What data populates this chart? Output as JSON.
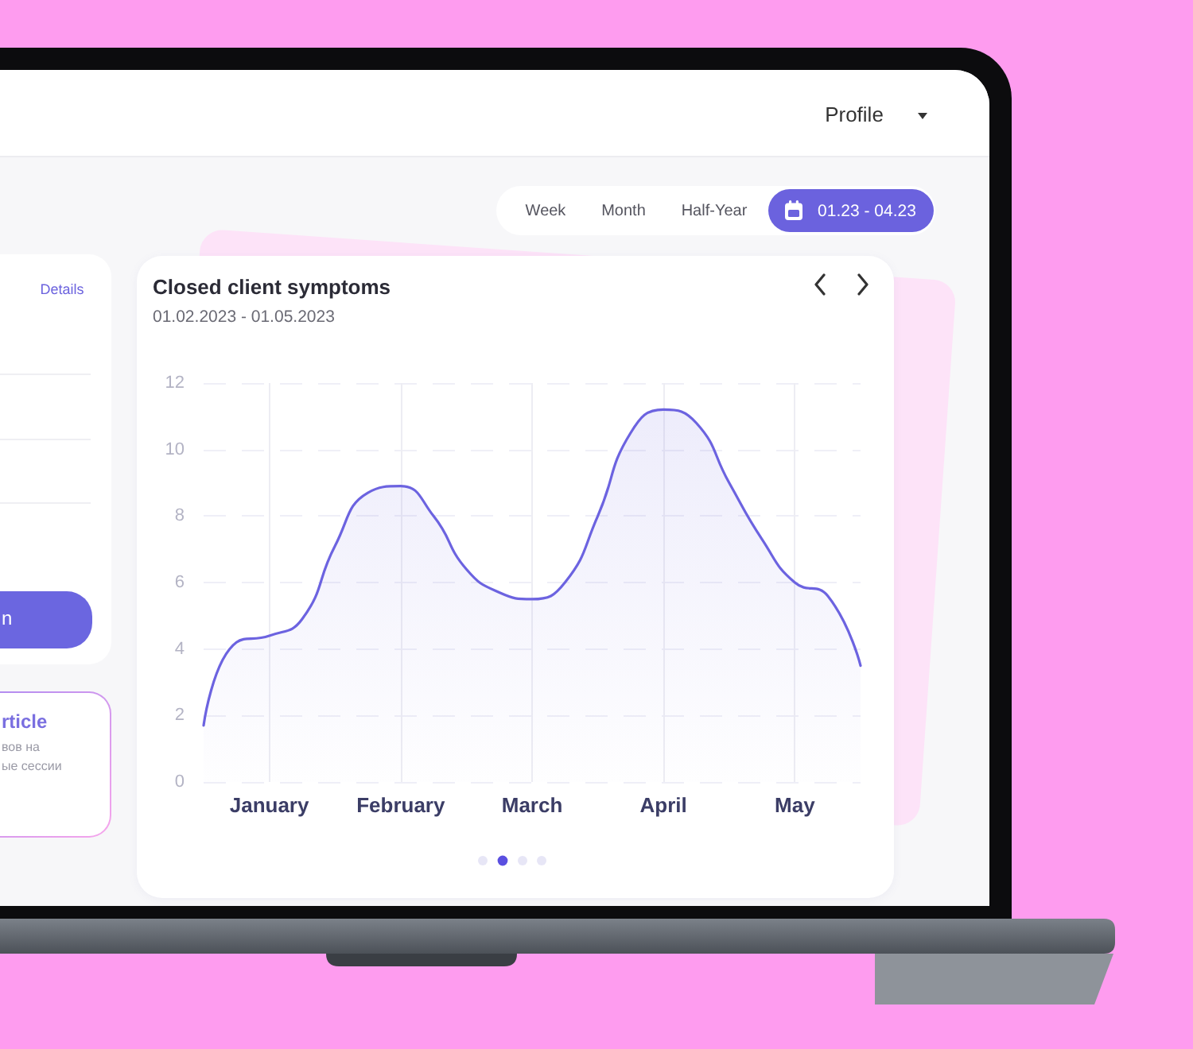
{
  "chart_data": {
    "type": "area",
    "title": "Closed client symptoms",
    "subtitle": "01.02.2023 - 01.05.2023",
    "categories": [
      null,
      null,
      "January",
      null,
      null,
      null,
      "February",
      null,
      null,
      null,
      "March",
      null,
      null,
      null,
      "April",
      null,
      null,
      null,
      "May",
      null,
      null
    ],
    "ylim": [
      0,
      12
    ],
    "yticks": [
      0,
      2,
      4,
      6,
      8,
      10,
      12
    ],
    "series": [
      {
        "color": "#6c63e0",
        "values": [
          1.7,
          4.2,
          4.4,
          4.9,
          7.1,
          8.7,
          8.9,
          8.0,
          6.4,
          5.7,
          5.5,
          6.0,
          8.0,
          10.5,
          11.2,
          10.8,
          9.0,
          7.3,
          6.0,
          5.6,
          3.5
        ]
      }
    ],
    "grid": true,
    "marker": "none",
    "line_style": "solid",
    "annotations": [
      "Profile",
      "Week",
      "Month",
      "Half-Year",
      "01.23 - 04.23",
      "Details",
      "n",
      "rticle",
      "вов на",
      "ые сессии"
    ]
  }
}
